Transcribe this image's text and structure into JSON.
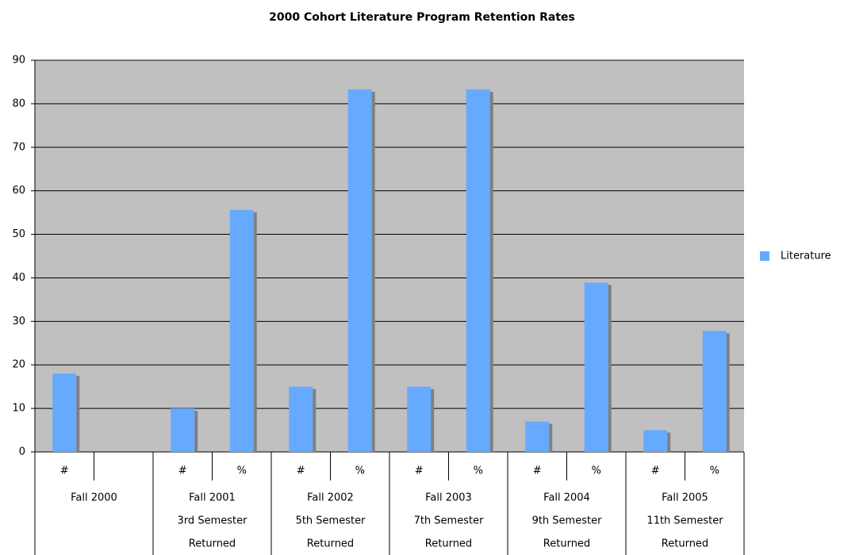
{
  "chart_data": {
    "type": "bar",
    "title": "2000 Cohort Literature Program Retention Rates",
    "categories": [
      "#",
      null,
      "#",
      "%",
      "#",
      "%",
      "#",
      "%",
      "#",
      "%",
      "#",
      "%"
    ],
    "groups": [
      [
        "Fall 2000"
      ],
      [
        "Fall 2001",
        "3rd Semester",
        "Returned"
      ],
      [
        "Fall 2002",
        "5th Semester",
        "Returned"
      ],
      [
        "Fall 2003",
        "7th Semester",
        "Returned"
      ],
      [
        "Fall 2004",
        "9th Semester",
        "Returned"
      ],
      [
        "Fall 2005",
        "11th Semester",
        "Returned"
      ]
    ],
    "series": [
      {
        "name": "Literature",
        "color": "#66aaff",
        "values": [
          18,
          null,
          10,
          55.6,
          15,
          83.3,
          15,
          83.3,
          7,
          38.9,
          5,
          27.8
        ]
      }
    ],
    "ylim": [
      0,
      90
    ],
    "yticks": [
      0,
      10,
      20,
      30,
      40,
      50,
      60,
      70,
      80,
      90
    ],
    "grid": true,
    "legend": "right"
  }
}
